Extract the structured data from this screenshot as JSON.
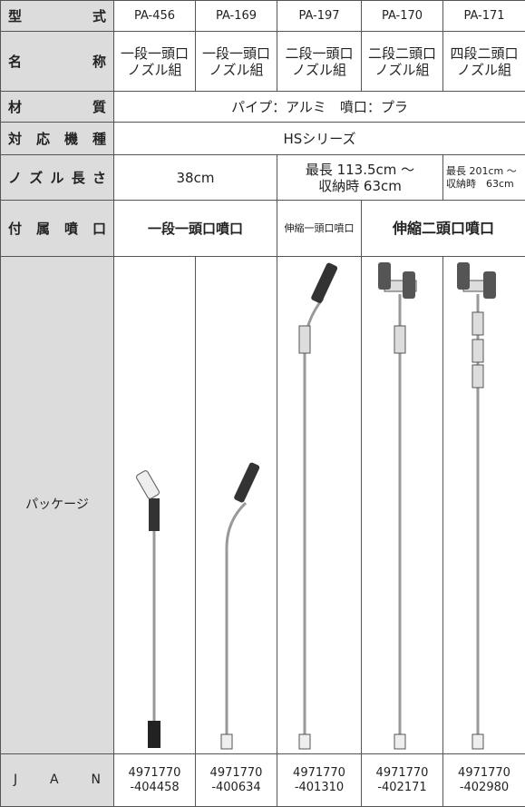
{
  "rows": {
    "model": "型式",
    "name": "名称",
    "material": "材質",
    "series": "対応機種",
    "length": "ノズル長さ",
    "nozzle": "付属噴口",
    "package": "パッケージ",
    "jan": "J A N"
  },
  "models": [
    "PA-456",
    "PA-169",
    "PA-197",
    "PA-170",
    "PA-171"
  ],
  "names": [
    [
      "一段一頭口",
      "ノズル組"
    ],
    [
      "一段一頭口",
      "ノズル組"
    ],
    [
      "二段一頭口",
      "ノズル組"
    ],
    [
      "二段二頭口",
      "ノズル組"
    ],
    [
      "四段二頭口",
      "ノズル組"
    ]
  ],
  "material": "パイプ：アルミ　噴口：プラ",
  "series": "HSシリーズ",
  "lengths": [
    "38cm",
    [
      "最長 113.5cm ～",
      "収納時 63cm"
    ],
    [
      "最長 201cm ～",
      "収納時　63cm"
    ]
  ],
  "nozzles": [
    "一段一頭口噴口",
    "伸縮一頭口噴口",
    "伸縮二頭口噴口"
  ],
  "jan": [
    [
      "4971770",
      "-404458"
    ],
    [
      "4971770",
      "-400634"
    ],
    [
      "4971770",
      "-401310"
    ],
    [
      "4971770",
      "-402171"
    ],
    [
      "4971770",
      "-402980"
    ]
  ]
}
